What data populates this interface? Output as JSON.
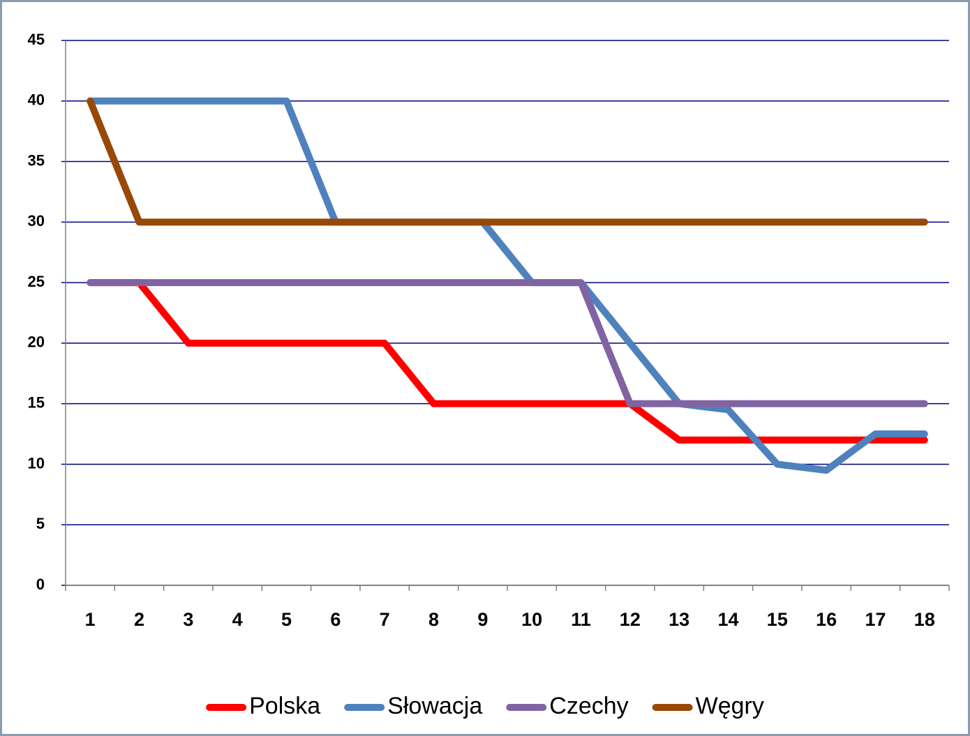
{
  "chart_data": {
    "type": "line",
    "categories": [
      "1",
      "2",
      "3",
      "4",
      "5",
      "6",
      "7",
      "8",
      "9",
      "10",
      "11",
      "12",
      "13",
      "14",
      "15",
      "16",
      "17",
      "18"
    ],
    "series": [
      {
        "name": "Polska",
        "color": "#ff0000",
        "values": [
          25,
          25,
          20,
          20,
          20,
          20,
          20,
          15,
          15,
          15,
          15,
          15,
          12,
          12,
          12,
          12,
          12,
          12
        ]
      },
      {
        "name": "Słowacja",
        "color": "#4f81bd",
        "values": [
          40,
          40,
          40,
          40,
          40,
          30,
          30,
          30,
          30,
          25,
          25,
          20,
          15,
          14.5,
          10,
          9.5,
          12.5,
          12.5
        ]
      },
      {
        "name": "Czechy",
        "color": "#8064a2",
        "values": [
          25,
          25,
          25,
          25,
          25,
          25,
          25,
          25,
          25,
          25,
          25,
          15,
          15,
          15,
          15,
          15,
          15,
          15
        ]
      },
      {
        "name": "Węgry",
        "color": "#984807",
        "values": [
          40,
          30,
          30,
          30,
          30,
          30,
          30,
          30,
          30,
          30,
          30,
          30,
          30,
          30,
          30,
          30,
          30,
          30
        ]
      }
    ],
    "ylim": [
      0,
      45
    ],
    "yticks": [
      0,
      5,
      10,
      15,
      20,
      25,
      30,
      35,
      40,
      45
    ],
    "grid": true,
    "legend": "bottom"
  }
}
